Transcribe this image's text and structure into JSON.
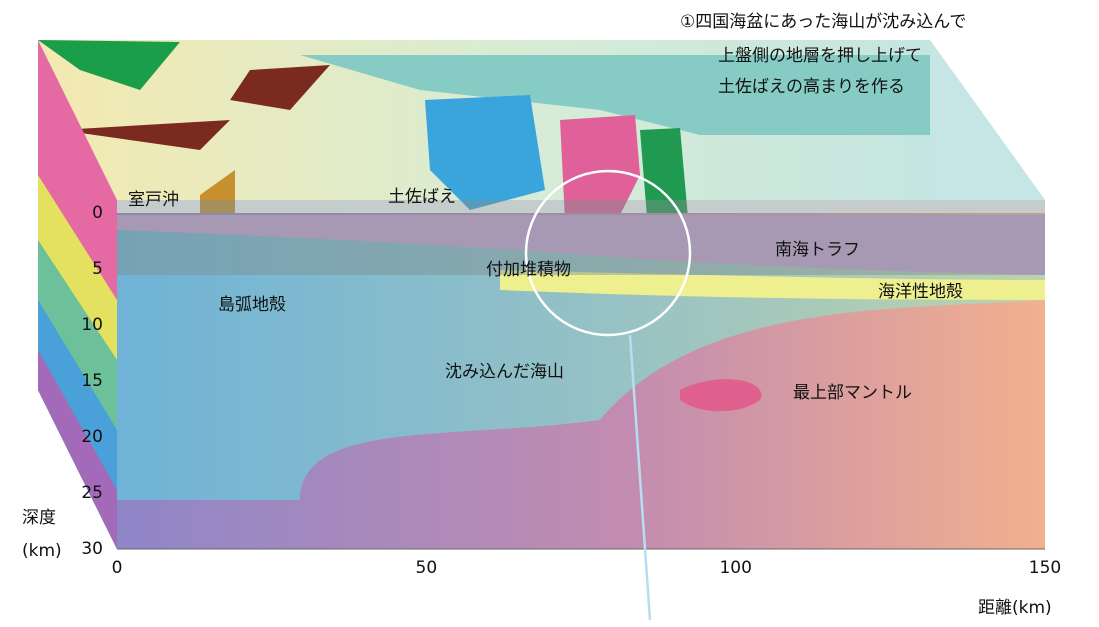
{
  "annotation": {
    "lines": [
      "①四国海盆にあった海山が沈み込んで",
      "上盤側の地層を押し上げて",
      "土佐ばえの高まりを作る"
    ]
  },
  "labels": {
    "muroto": "室戸沖",
    "tosabae": "土佐ばえ",
    "nankai": "南海トラフ",
    "accretion": "付加堆積物",
    "oceanic_crust": "海洋性地殻",
    "arc_crust": "島弧地殻",
    "seamount": "沈み込んだ海山",
    "mantle": "最上部マントル"
  },
  "axes": {
    "depth": {
      "title": "深度",
      "unit": "(km)",
      "ticks": [
        0,
        5,
        10,
        15,
        20,
        25,
        30
      ],
      "lim": [
        0,
        30
      ]
    },
    "distance": {
      "title": "距離(km)",
      "ticks": [
        0,
        50,
        100,
        150
      ],
      "lim": [
        0,
        150
      ]
    }
  }
}
